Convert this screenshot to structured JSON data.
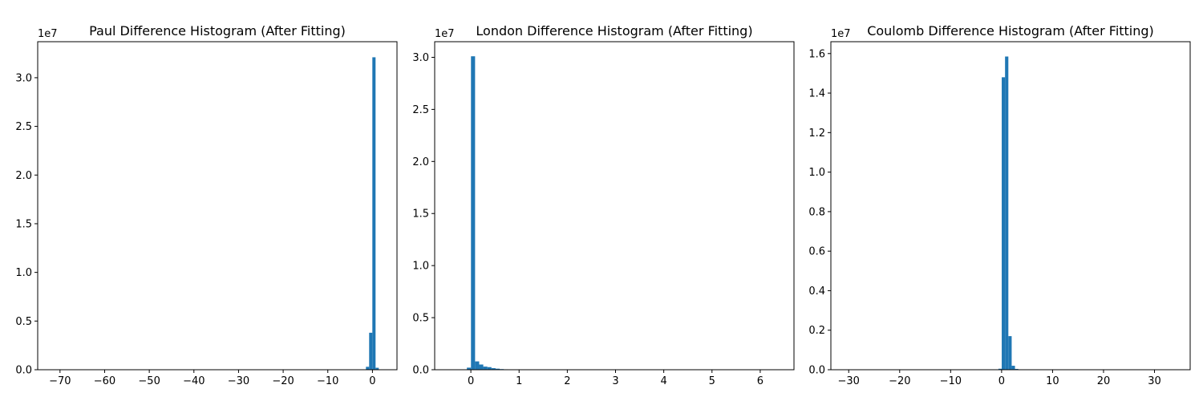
{
  "chart_data": [
    {
      "type": "bar",
      "title": "Paul Difference Histogram (After Fitting)",
      "xlabel": "",
      "ylabel": "",
      "xlim": [
        -75,
        5.5
      ],
      "ylim": [
        0,
        3.37
      ],
      "y_offset_label": "1e7",
      "x_ticks": [
        -70,
        -60,
        -50,
        -40,
        -30,
        -20,
        -10,
        0
      ],
      "x_tick_labels": [
        "−70",
        "−60",
        "−50",
        "−40",
        "−30",
        "−20",
        "−10",
        "0"
      ],
      "y_ticks": [
        0,
        0.5,
        1.0,
        1.5,
        2.0,
        2.5,
        3.0
      ],
      "y_tick_labels": [
        "0.0",
        "0.5",
        "1.0",
        "1.5",
        "2.0",
        "2.5",
        "3.0"
      ],
      "bin_width": 0.72,
      "bars": [
        {
          "x": -1.1,
          "value": 0.03
        },
        {
          "x": -0.38,
          "value": 0.38
        },
        {
          "x": 0.34,
          "value": 3.21
        },
        {
          "x": 1.06,
          "value": 0.02
        }
      ]
    },
    {
      "type": "bar",
      "title": "London Difference Histogram (After Fitting)",
      "xlabel": "",
      "ylabel": "",
      "xlim": [
        -0.75,
        6.7
      ],
      "ylim": [
        0,
        3.15
      ],
      "y_offset_label": "1e7",
      "x_ticks": [
        0,
        1,
        2,
        3,
        4,
        5,
        6
      ],
      "x_tick_labels": [
        "0",
        "1",
        "2",
        "3",
        "4",
        "5",
        "6"
      ],
      "y_ticks": [
        0,
        0.5,
        1.0,
        1.5,
        2.0,
        2.5,
        3.0
      ],
      "y_tick_labels": [
        "0.0",
        "0.5",
        "1.0",
        "1.5",
        "2.0",
        "2.5",
        "3.0"
      ],
      "bin_width": 0.085,
      "bars": [
        {
          "x": -0.04,
          "value": 0.02
        },
        {
          "x": 0.045,
          "value": 3.01
        },
        {
          "x": 0.13,
          "value": 0.08
        },
        {
          "x": 0.215,
          "value": 0.05
        },
        {
          "x": 0.3,
          "value": 0.03
        },
        {
          "x": 0.385,
          "value": 0.025
        },
        {
          "x": 0.47,
          "value": 0.015
        },
        {
          "x": 0.555,
          "value": 0.01
        },
        {
          "x": 0.64,
          "value": 0.006
        },
        {
          "x": 0.725,
          "value": 0.004
        },
        {
          "x": 0.81,
          "value": 0.003
        },
        {
          "x": 0.895,
          "value": 0.002
        },
        {
          "x": 0.98,
          "value": 0.002
        },
        {
          "x": 1.065,
          "value": 0.001
        },
        {
          "x": 1.15,
          "value": 0.001
        }
      ]
    },
    {
      "type": "bar",
      "title": "Coulomb Difference Histogram (After Fitting)",
      "xlabel": "",
      "ylabel": "",
      "xlim": [
        -33.5,
        37
      ],
      "ylim": [
        0,
        1.66
      ],
      "y_offset_label": "1e7",
      "x_ticks": [
        -30,
        -20,
        -10,
        0,
        10,
        20,
        30
      ],
      "x_tick_labels": [
        "−30",
        "−20",
        "−10",
        "0",
        "10",
        "20",
        "30"
      ],
      "y_ticks": [
        0,
        0.2,
        0.4,
        0.6,
        0.8,
        1.0,
        1.2,
        1.4,
        1.6
      ],
      "y_tick_labels": [
        "0.0",
        "0.2",
        "0.4",
        "0.6",
        "0.8",
        "1.0",
        "1.2",
        "1.4",
        "1.6"
      ],
      "bin_width": 0.65,
      "bars": [
        {
          "x": -0.3,
          "value": 0.005
        },
        {
          "x": 0.35,
          "value": 1.48
        },
        {
          "x": 1.0,
          "value": 1.585
        },
        {
          "x": 1.65,
          "value": 0.17
        },
        {
          "x": 2.3,
          "value": 0.02
        },
        {
          "x": 2.95,
          "value": 0.004
        }
      ]
    }
  ]
}
